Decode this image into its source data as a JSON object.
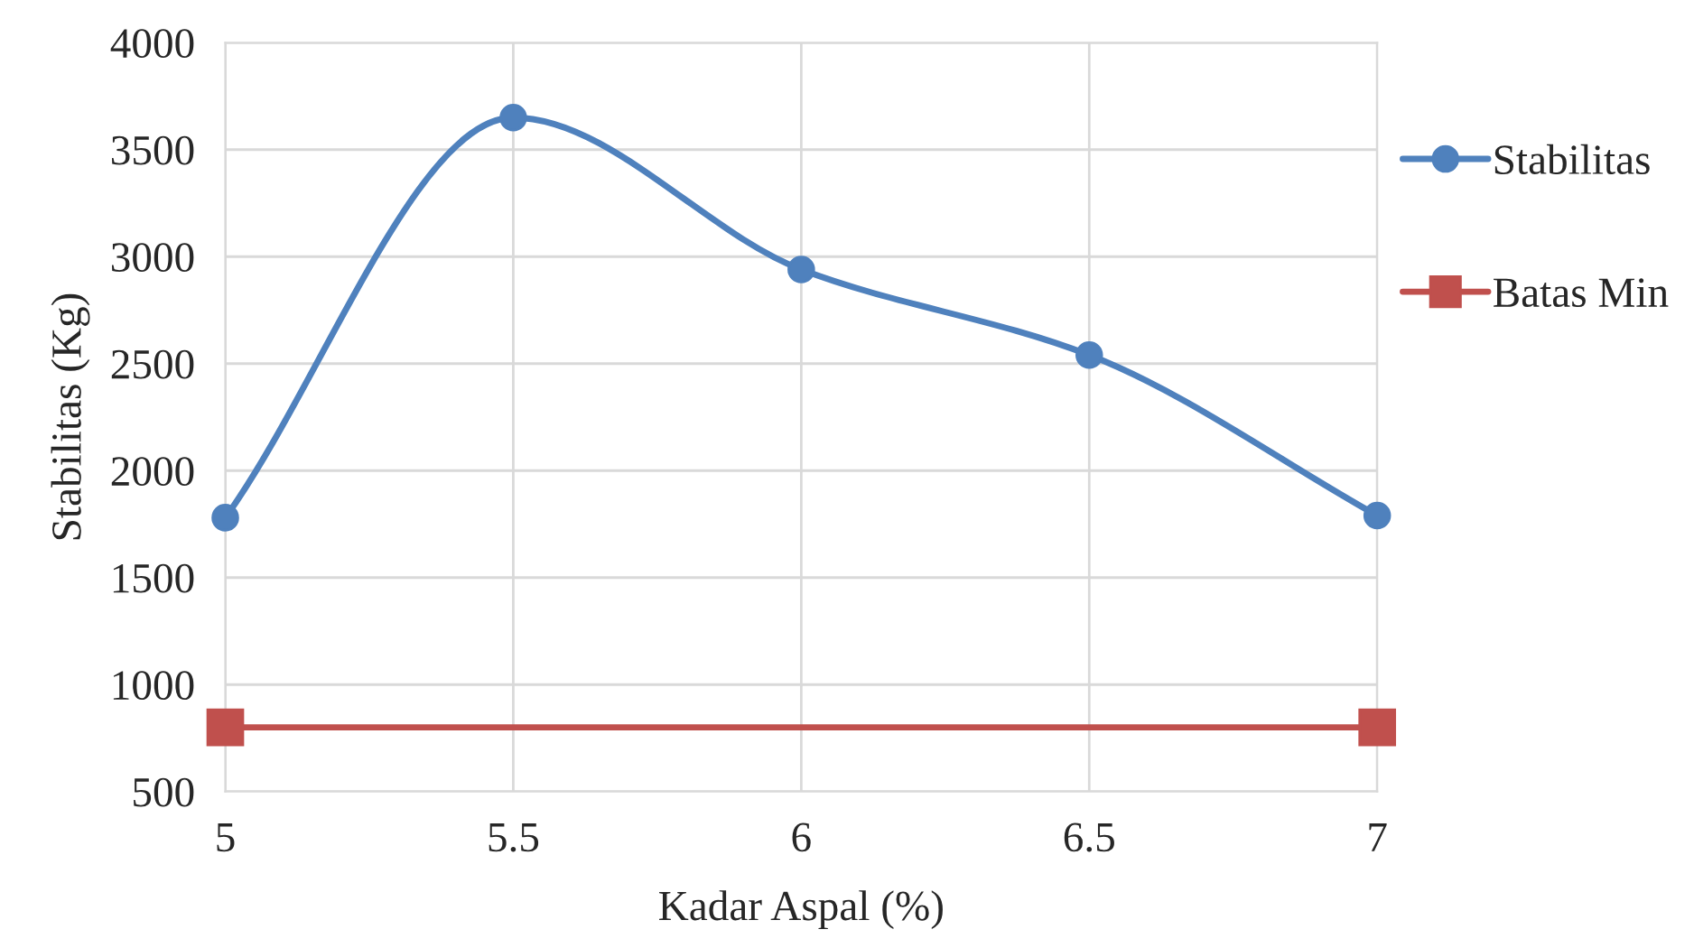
{
  "chart_data": {
    "type": "line",
    "xlabel": "Kadar Aspal (%)",
    "ylabel": "Stabilitas (Kg)",
    "x": [
      5,
      5.5,
      6,
      6.5,
      7
    ],
    "series": [
      {
        "name": "Stabilitas",
        "color": "#4f81bd",
        "marker": "circle",
        "values": [
          1780,
          3650,
          2940,
          2540,
          1790
        ]
      },
      {
        "name": "Batas Min",
        "color": "#c0504d",
        "marker": "square",
        "x": [
          5,
          7
        ],
        "values": [
          800,
          800
        ]
      }
    ],
    "xlim": [
      5,
      7
    ],
    "xticks": [
      5,
      {
        "value": 5.5,
        "label": "5.5"
      },
      6,
      {
        "value": 6.5,
        "label": "6.5"
      },
      7
    ],
    "ylim": [
      500,
      4000
    ],
    "yticks": [
      500,
      1000,
      1500,
      2000,
      2500,
      3000,
      3500,
      4000
    ],
    "grid": true,
    "legend": "right",
    "line_style": "solid"
  }
}
